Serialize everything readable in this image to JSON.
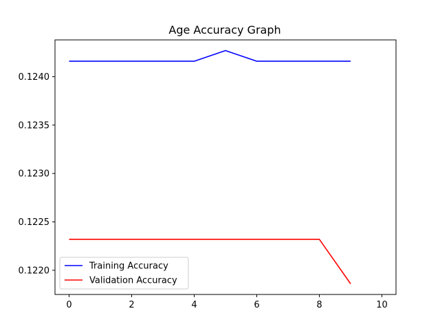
{
  "chart_data": {
    "type": "line",
    "title": "Age Accuracy Graph",
    "xlabel": "",
    "ylabel": "",
    "x": [
      0,
      1,
      2,
      3,
      4,
      5,
      6,
      7,
      8,
      9
    ],
    "xlim": [
      -0.45,
      10.45
    ],
    "ylim": [
      0.12175,
      0.12438
    ],
    "x_ticks": [
      0,
      2,
      4,
      6,
      8,
      10
    ],
    "y_ticks": [
      0.122,
      0.1225,
      0.123,
      0.1235,
      0.124
    ],
    "x_tick_labels": [
      "0",
      "2",
      "4",
      "6",
      "8",
      "10"
    ],
    "y_tick_labels": [
      "0.1220",
      "0.1225",
      "0.1230",
      "0.1235",
      "0.1240"
    ],
    "grid": false,
    "legend_position": "lower-left",
    "series": [
      {
        "name": "Training Accuracy",
        "color": "#0000ff",
        "values": [
          0.12416,
          0.12416,
          0.12416,
          0.12416,
          0.12416,
          0.12427,
          0.12416,
          0.12416,
          0.12416,
          0.12416
        ]
      },
      {
        "name": "Validation Accuracy",
        "color": "#ff0000",
        "values": [
          0.12232,
          0.12232,
          0.12232,
          0.12232,
          0.12232,
          0.12232,
          0.12232,
          0.12232,
          0.12232,
          0.12186
        ]
      }
    ]
  }
}
